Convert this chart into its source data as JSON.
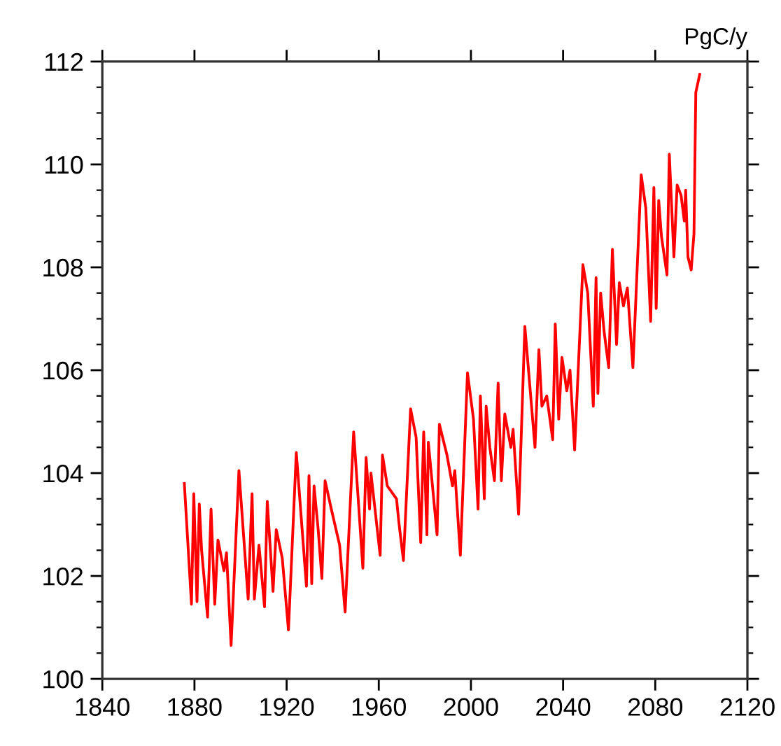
{
  "chart_data": {
    "type": "line",
    "ylabel": "PgC/y",
    "xlim": [
      1840,
      2120
    ],
    "xticks": [
      1840,
      1880,
      1920,
      1960,
      2000,
      2040,
      2080,
      2120
    ],
    "ylim": [
      100,
      112
    ],
    "yticks": [
      100,
      102,
      104,
      106,
      108,
      110,
      112
    ],
    "grid": false,
    "legend": false,
    "marker": "none",
    "line_style": "solid",
    "series": [
      {
        "color": "#ff0000",
        "x": [
          1875.6,
          1878.7,
          1879.7,
          1881.1,
          1882.1,
          1883.1,
          1885.7,
          1887.2,
          1888.8,
          1890.2,
          1892.8,
          1893.9,
          1895.9,
          1899.3,
          1903.3,
          1905,
          1906,
          1908,
          1910.4,
          1911.6,
          1914.1,
          1915.5,
          1918.1,
          1920.8,
          1924.2,
          1928.6,
          1929.7,
          1930.9,
          1931.9,
          1933.7,
          1935.3,
          1936.7,
          1939.4,
          1943,
          1945.4,
          1949.1,
          1953.1,
          1954.5,
          1956,
          1956.6,
          1958.6,
          1960.6,
          1961.6,
          1963.7,
          1967.7,
          1968.7,
          1970.7,
          1973.8,
          1976.2,
          1978.2,
          1979.5,
          1980.9,
          1981.5,
          1983.3,
          1985.3,
          1986.3,
          1989.6,
          1992,
          1993,
          1995.4,
          1998.5,
          2001.1,
          2003.1,
          2004.1,
          2005.8,
          2006.6,
          2008.2,
          2010.2,
          2011.8,
          2013.2,
          2014.7,
          2017.3,
          2018.3,
          2020.7,
          2023.4,
          2027.8,
          2029.5,
          2030.8,
          2032.9,
          2035.5,
          2036.6,
          2038.1,
          2039.5,
          2041.6,
          2043,
          2045,
          2048.6,
          2050.7,
          2053.1,
          2054.3,
          2055.1,
          2056.3,
          2057.8,
          2059.8,
          2061.4,
          2063.2,
          2064.4,
          2066.2,
          2067.9,
          2070.3,
          2073.9,
          2075.9,
          2078,
          2079.4,
          2080.4,
          2081.5,
          2082.7,
          2085.1,
          2086.1,
          2088.1,
          2089.5,
          2091.2,
          2092.6,
          2093.2,
          2094.2,
          2095.6,
          2096.8,
          2097.6,
          2099.3
        ],
        "values": [
          103.8,
          101.45,
          103.6,
          101.5,
          103.4,
          102.5,
          101.2,
          103.3,
          101.45,
          102.7,
          102.1,
          102.45,
          100.65,
          104.05,
          101.55,
          103.6,
          101.55,
          102.6,
          101.4,
          103.45,
          101.7,
          102.9,
          102.35,
          100.95,
          104.4,
          101.8,
          103.95,
          101.85,
          103.75,
          102.9,
          101.95,
          103.85,
          103.3,
          102.6,
          101.3,
          104.8,
          102.15,
          104.3,
          103.3,
          104.0,
          103.2,
          102.4,
          104.35,
          103.75,
          103.5,
          103.05,
          102.3,
          105.25,
          104.7,
          102.65,
          104.8,
          102.8,
          104.6,
          103.75,
          102.8,
          104.95,
          104.35,
          103.75,
          104.05,
          102.4,
          105.95,
          105.05,
          103.3,
          105.5,
          103.5,
          105.3,
          104.5,
          103.85,
          105.75,
          103.85,
          105.15,
          104.5,
          104.85,
          103.2,
          106.85,
          104.5,
          106.4,
          105.3,
          105.5,
          104.65,
          106.9,
          105.05,
          106.25,
          105.6,
          106.0,
          104.45,
          108.05,
          107.5,
          105.3,
          107.8,
          105.55,
          107.5,
          106.75,
          106.05,
          108.35,
          106.5,
          107.7,
          107.25,
          107.6,
          106.05,
          109.8,
          109.15,
          106.95,
          109.55,
          107.2,
          109.3,
          108.6,
          107.85,
          110.2,
          108.2,
          109.6,
          109.4,
          108.9,
          109.5,
          108.2,
          107.95,
          108.65,
          111.4,
          111.75
        ]
      }
    ]
  }
}
